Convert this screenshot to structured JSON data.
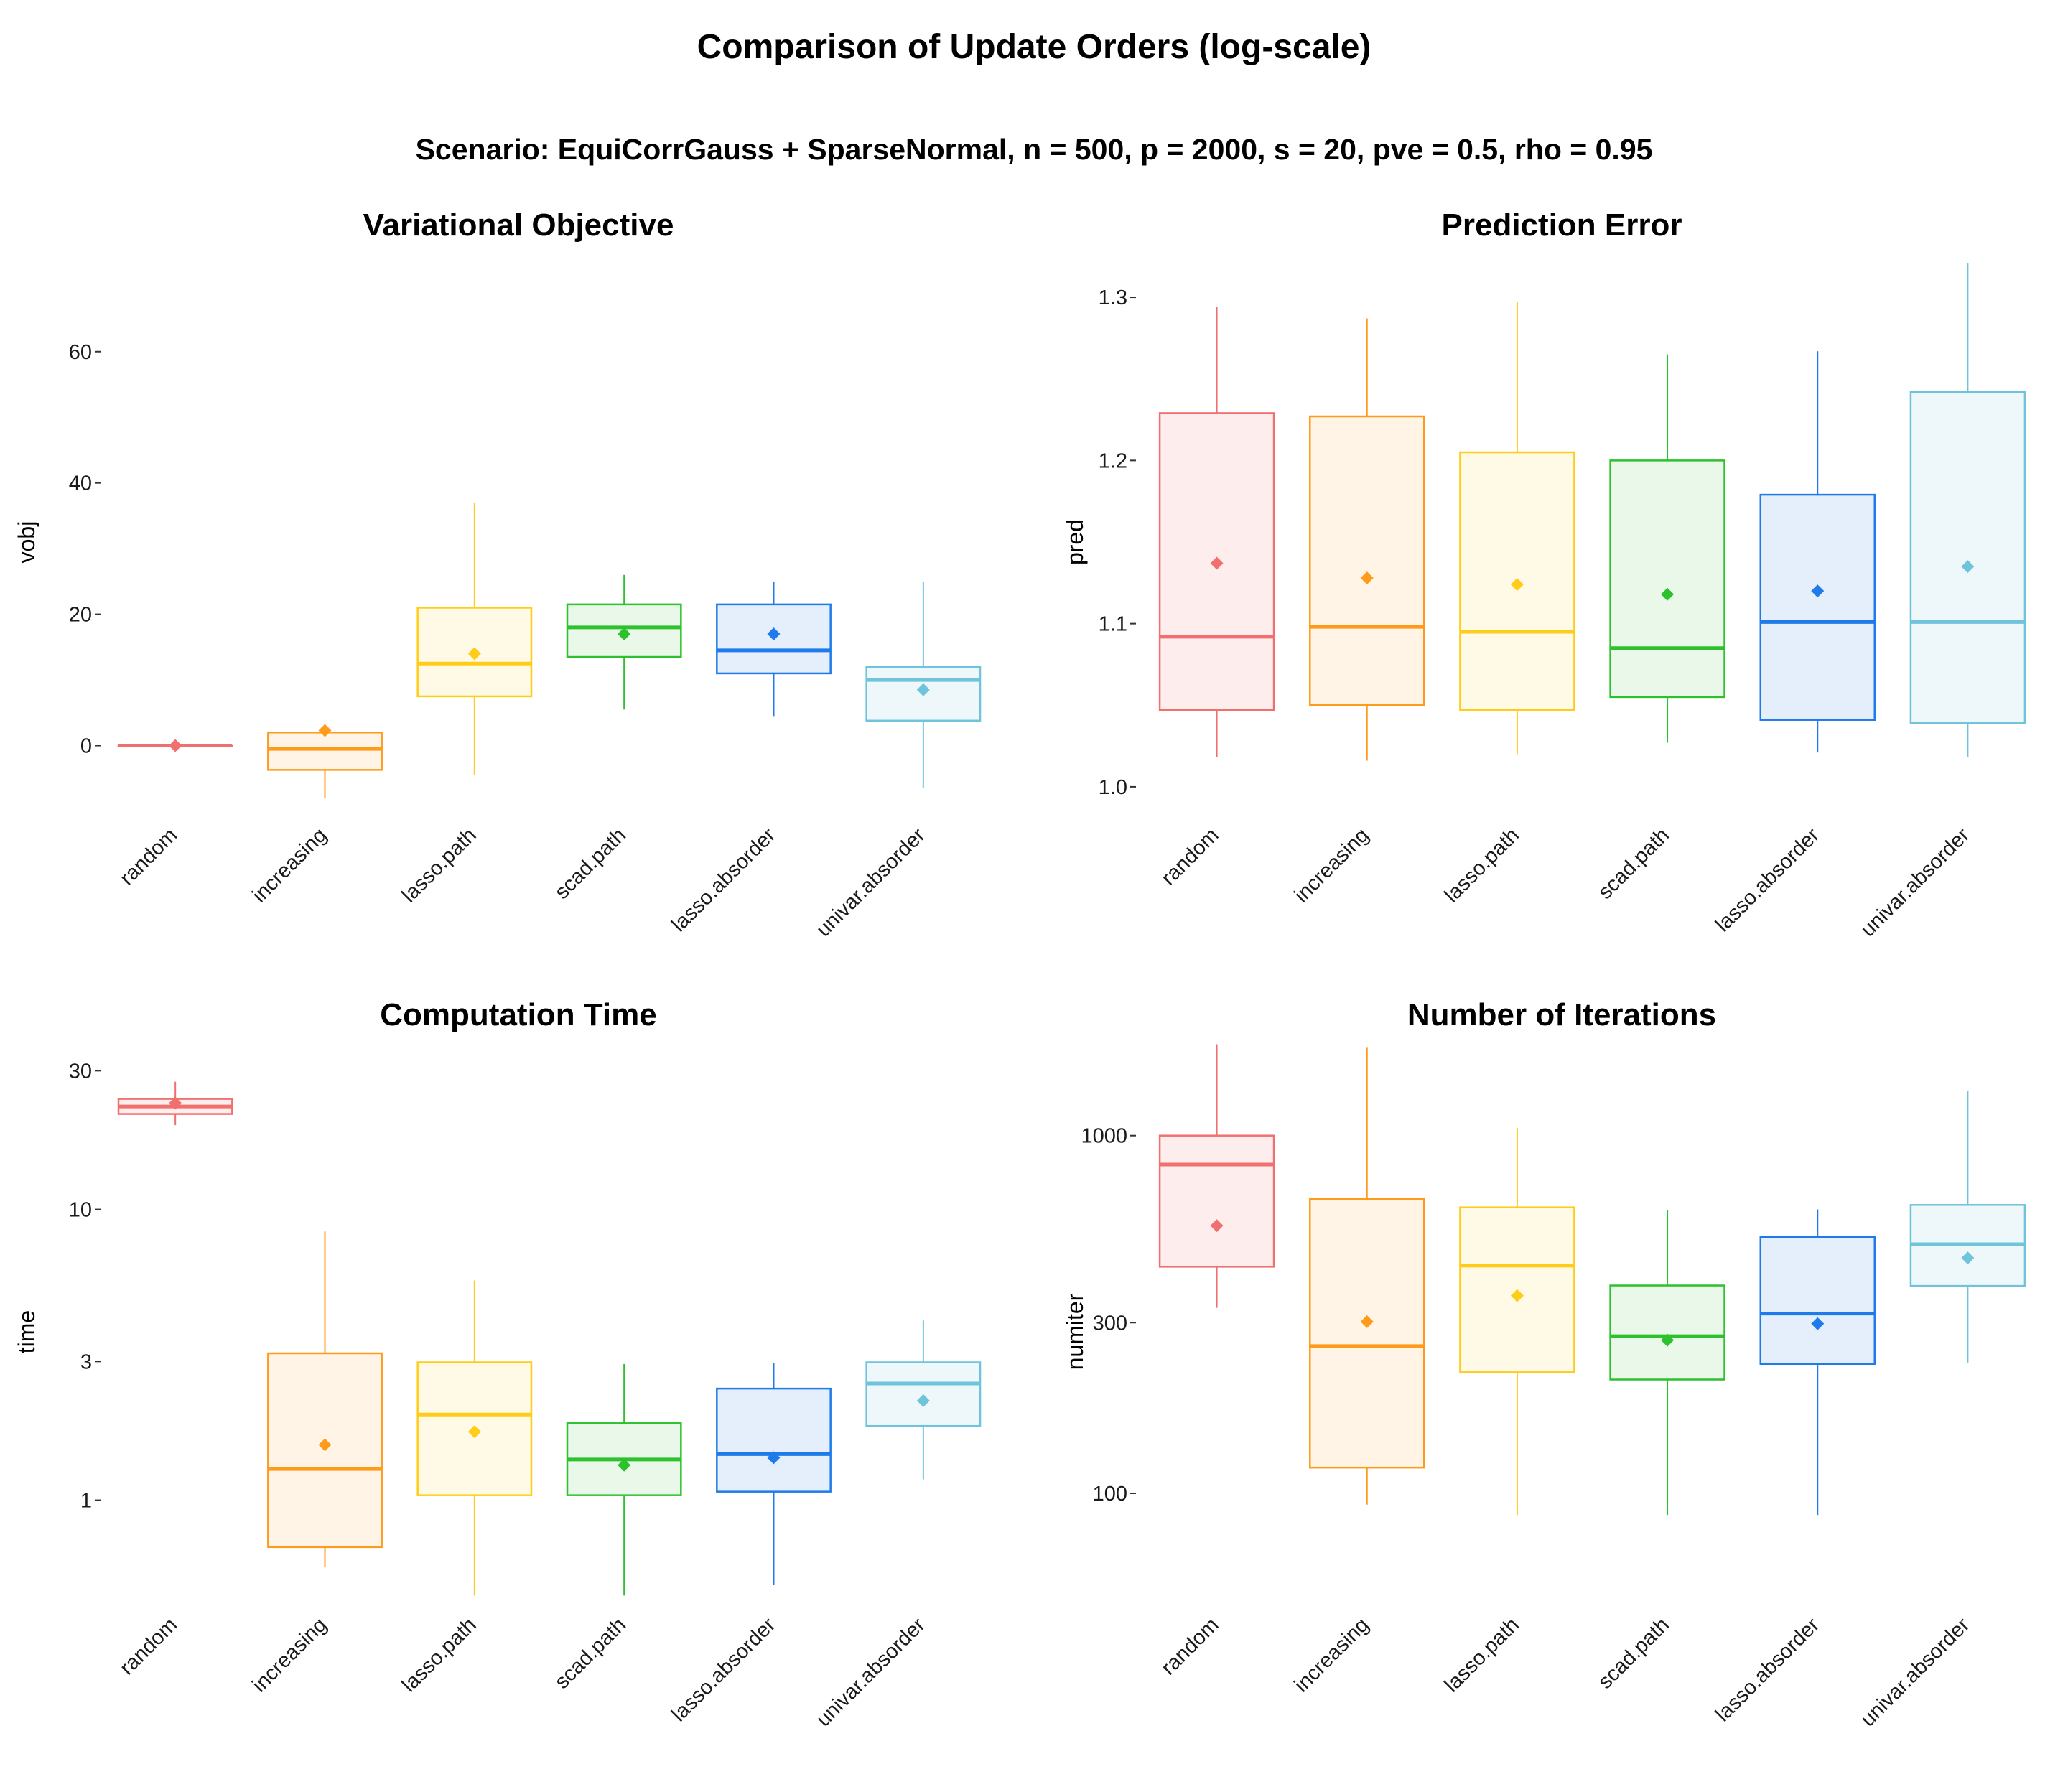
{
  "title": "Comparison of Update Orders (log-scale)",
  "subtitle": "Scenario: EquiCorrGauss + SparseNormal, n = 500, p = 2000, s = 20, pve = 0.5, rho = 0.95",
  "colors": [
    "#F07070",
    "#FF9A1A",
    "#FFCC1A",
    "#2DC12D",
    "#1F7BEA",
    "#6FC4DC"
  ],
  "fill_colors": [
    "#FDEDED",
    "#FFF4E6",
    "#FFFAE6",
    "#EAF8EA",
    "#E5EFFC",
    "#EEF8FA"
  ],
  "chart_data": [
    {
      "type": "box",
      "title": "Variational Objective",
      "xlabel": "",
      "ylabel": "vobj",
      "scale": "linear",
      "ylim": [
        -10,
        72
      ],
      "yticks": [
        0,
        20,
        40,
        60
      ],
      "ytick_labels": [
        "0",
        "20",
        "40",
        "60"
      ],
      "categories": [
        "random",
        "increasing",
        "lasso.path",
        "scad.path",
        "lasso.absorder",
        "univar.absorder"
      ],
      "boxes": [
        {
          "min": 0,
          "q1": 0,
          "median": 0,
          "q3": 0,
          "max": 0,
          "mean": 0
        },
        {
          "min": -8,
          "q1": -3.7,
          "median": -0.5,
          "q3": 2,
          "max": 2,
          "mean": 2.3
        },
        {
          "min": -4.5,
          "q1": 7.5,
          "median": 12.5,
          "q3": 21,
          "max": 37,
          "mean": 14
        },
        {
          "min": 5.5,
          "q1": 13.5,
          "median": 18,
          "q3": 21.5,
          "max": 26,
          "mean": 17
        },
        {
          "min": 4.5,
          "q1": 11,
          "median": 14.5,
          "q3": 21.5,
          "max": 25,
          "mean": 17
        },
        {
          "min": -6.5,
          "q1": 3.8,
          "median": 10,
          "q3": 12,
          "max": 25,
          "mean": 8.5
        }
      ]
    },
    {
      "type": "box",
      "title": "Prediction Error",
      "xlabel": "",
      "ylabel": "pred",
      "scale": "linear",
      "ylim": [
        0.985,
        1.315
      ],
      "yticks": [
        1.0,
        1.1,
        1.2,
        1.3
      ],
      "ytick_labels": [
        "1.0",
        "1.1",
        "1.2",
        "1.3"
      ],
      "categories": [
        "random",
        "increasing",
        "lasso.path",
        "scad.path",
        "lasso.absorder",
        "univar.absorder"
      ],
      "boxes": [
        {
          "min": 1.018,
          "q1": 1.047,
          "median": 1.092,
          "q3": 1.229,
          "max": 1.294,
          "mean": 1.137
        },
        {
          "min": 1.016,
          "q1": 1.05,
          "median": 1.098,
          "q3": 1.227,
          "max": 1.287,
          "mean": 1.128
        },
        {
          "min": 1.02,
          "q1": 1.047,
          "median": 1.095,
          "q3": 1.205,
          "max": 1.297,
          "mean": 1.124
        },
        {
          "min": 1.027,
          "q1": 1.055,
          "median": 1.085,
          "q3": 1.2,
          "max": 1.265,
          "mean": 1.118
        },
        {
          "min": 1.021,
          "q1": 1.041,
          "median": 1.101,
          "q3": 1.179,
          "max": 1.267,
          "mean": 1.12
        },
        {
          "min": 1.018,
          "q1": 1.039,
          "median": 1.101,
          "q3": 1.242,
          "max": 1.321,
          "mean": 1.135
        }
      ]
    },
    {
      "type": "box",
      "title": "Computation Time",
      "xlabel": "",
      "ylabel": "time",
      "scale": "log",
      "ylim": [
        0.45,
        32
      ],
      "yticks": [
        1,
        3,
        10,
        30
      ],
      "ytick_labels": [
        "1",
        "3",
        "10",
        "30"
      ],
      "categories": [
        "random",
        "increasing",
        "lasso.path",
        "scad.path",
        "lasso.absorder",
        "univar.absorder"
      ],
      "boxes": [
        {
          "min": 19.5,
          "q1": 21.3,
          "median": 22.6,
          "q3": 24.0,
          "max": 27.5,
          "mean": 23.2
        },
        {
          "min": 0.59,
          "q1": 0.69,
          "median": 1.28,
          "q3": 3.2,
          "max": 8.4,
          "mean": 1.55
        },
        {
          "min": 0.47,
          "q1": 1.04,
          "median": 1.97,
          "q3": 2.98,
          "max": 5.7,
          "mean": 1.72
        },
        {
          "min": 0.47,
          "q1": 1.04,
          "median": 1.38,
          "q3": 1.84,
          "max": 2.94,
          "mean": 1.32
        },
        {
          "min": 0.51,
          "q1": 1.07,
          "median": 1.44,
          "q3": 2.42,
          "max": 2.96,
          "mean": 1.4
        },
        {
          "min": 1.18,
          "q1": 1.8,
          "median": 2.52,
          "q3": 2.98,
          "max": 4.15,
          "mean": 2.2
        }
      ]
    },
    {
      "type": "box",
      "title": "Number of Iterations",
      "xlabel": "",
      "ylabel": "numiter",
      "scale": "log",
      "ylim": [
        50,
        1600
      ],
      "yticks": [
        100,
        300,
        1000
      ],
      "ytick_labels": [
        "100",
        "300",
        "1000"
      ],
      "categories": [
        "random",
        "increasing",
        "lasso.path",
        "scad.path",
        "lasso.absorder",
        "univar.absorder"
      ],
      "boxes": [
        {
          "min": 330,
          "q1": 430,
          "median": 830,
          "q3": 1000,
          "max": 1800,
          "mean": 560
        },
        {
          "min": 93,
          "q1": 118,
          "median": 258,
          "q3": 665,
          "max": 1760,
          "mean": 302
        },
        {
          "min": 87,
          "q1": 218,
          "median": 433,
          "q3": 630,
          "max": 1050,
          "mean": 357
        },
        {
          "min": 87,
          "q1": 208,
          "median": 275,
          "q3": 381,
          "max": 620,
          "mean": 268
        },
        {
          "min": 87,
          "q1": 230,
          "median": 318,
          "q3": 520,
          "max": 622,
          "mean": 298
        },
        {
          "min": 232,
          "q1": 380,
          "median": 497,
          "q3": 640,
          "max": 1330,
          "mean": 455
        }
      ]
    }
  ]
}
